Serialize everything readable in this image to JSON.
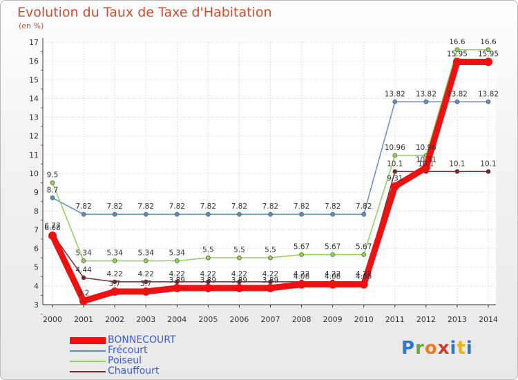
{
  "chart_data": {
    "type": "line",
    "title": "Evolution du Taux de Taxe d'Habitation",
    "ylabel": "(en %)",
    "xlabel": "",
    "ylim": [
      3,
      17
    ],
    "yticks": [
      "3",
      "4",
      "5",
      "6",
      "7",
      "8",
      "9",
      "10",
      "11",
      "12",
      "13",
      "14",
      "15",
      "16",
      "17"
    ],
    "categories": [
      "2000",
      "2001",
      "2002",
      "2003",
      "2004",
      "2005",
      "2006",
      "2007",
      "2008",
      "2009",
      "2010",
      "2011",
      "2012",
      "2013",
      "2014"
    ],
    "series": [
      {
        "name": "Frécourt",
        "color": "#5b8fc7",
        "values": [
          8.7,
          7.82,
          7.82,
          7.82,
          7.82,
          7.82,
          7.82,
          7.82,
          7.82,
          7.82,
          7.82,
          13.82,
          13.82,
          13.82,
          13.82
        ],
        "labels": [
          "8.7",
          "7.82",
          "7.82",
          "7.82",
          "7.82",
          "7.82",
          "7.82",
          "7.82",
          "7.82",
          "7.82",
          "7.82",
          "13.82",
          "13.82",
          "13.82",
          "13.82"
        ]
      },
      {
        "name": "Poiseul",
        "color": "#8fd05a",
        "values": [
          9.5,
          5.34,
          5.34,
          5.34,
          5.34,
          5.5,
          5.5,
          5.5,
          5.67,
          5.67,
          5.67,
          10.96,
          10.96,
          16.6,
          16.6
        ],
        "labels": [
          "9.5",
          "5.34",
          "5.34",
          "5.34",
          "5.34",
          "5.5",
          "5.5",
          "5.5",
          "5.67",
          "5.67",
          "5.67",
          "10.96",
          "10.96",
          "16.6",
          "16.6"
        ]
      },
      {
        "name": "Chauffourt",
        "color": "#7a2a2a",
        "values": [
          6.77,
          4.44,
          4.22,
          4.22,
          4.22,
          4.22,
          4.22,
          4.22,
          4.22,
          4.22,
          4.22,
          10.1,
          10.1,
          10.1,
          10.1
        ],
        "labels": [
          "6.77",
          "4.44",
          "4.22",
          "4.22",
          "4.22",
          "4.22",
          "4.22",
          "4.22",
          "4.22",
          "4.22",
          "4.22",
          "10.1",
          "10.1",
          "10.1",
          "10.1"
        ]
      },
      {
        "name": "BONNECOURT",
        "color": "#ee1111",
        "values": [
          6.68,
          3.2,
          3.7,
          3.7,
          3.89,
          3.89,
          3.89,
          3.89,
          4.08,
          4.08,
          4.08,
          9.31,
          10.31,
          15.95,
          15.95
        ],
        "labels": [
          "6.68",
          "3.2",
          "3.7",
          "3.7",
          "3.89",
          "3.89",
          "3.89",
          "3.89",
          "4.08",
          "4.08",
          "4.08",
          "9.31",
          "10.31",
          "15.95",
          "15.95"
        ]
      }
    ],
    "legend": [
      "BONNECOURT",
      "Frécourt",
      "Poiseul",
      "Chauffourt"
    ],
    "legend_position": "bottom-left"
  },
  "logo": {
    "p": "P",
    "r": "r",
    "o": "o",
    "x": "x",
    "i": "i",
    "t": "t",
    "i2": "i"
  }
}
